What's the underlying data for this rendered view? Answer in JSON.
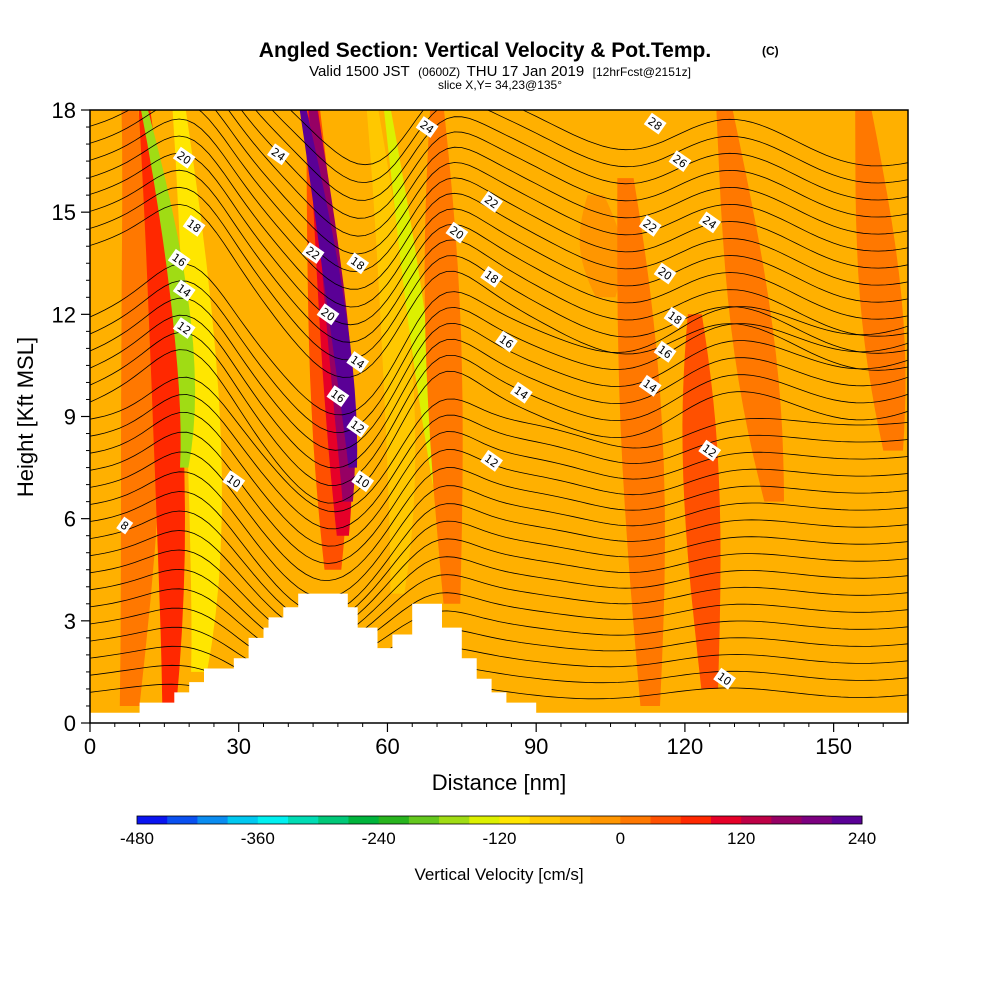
{
  "header": {
    "title": "Angled Section: Vertical Velocity & Pot.Temp.",
    "title_mark": "(C)",
    "subtitle_valid": "Valid 1500 JST",
    "subtitle_z": "(0600Z)",
    "subtitle_date": "THU 17 Jan 2019",
    "subtitle_fcst": "[12hrFcst@2151z]",
    "slice": "slice X,Y= 34,23@135°"
  },
  "chart_data": {
    "type": "heatmap",
    "title": "Angled Section: Vertical Velocity & Pot.Temp.",
    "xlabel": "Distance [nm]",
    "ylabel": "Height [Kft MSL]",
    "xlim": [
      0,
      165
    ],
    "ylim": [
      0,
      18
    ],
    "x_ticks": [
      0,
      30,
      60,
      90,
      120,
      150
    ],
    "y_ticks": [
      0,
      3,
      6,
      9,
      12,
      15,
      18
    ],
    "x_tick_labels": [
      "0",
      "30",
      "60",
      "90",
      "120",
      "150"
    ],
    "y_tick_labels": [
      "0",
      "3",
      "6",
      "9",
      "12",
      "15",
      "18"
    ],
    "background_color": "#ffb000",
    "colorbar": {
      "title": "Vertical Velocity [cm/s]",
      "range": [
        -480,
        240
      ],
      "ticks": [
        -480,
        -360,
        -240,
        -120,
        0,
        120,
        240
      ],
      "tick_labels": [
        "-480",
        "-360",
        "-240",
        "-120",
        "0",
        "120",
        "240"
      ],
      "colors": [
        "#0a14f0",
        "#0a50f0",
        "#0a8cf0",
        "#00c8f0",
        "#00f0f0",
        "#00dcb4",
        "#00c878",
        "#00b43c",
        "#28b41e",
        "#64c81e",
        "#a0dc14",
        "#dcf000",
        "#ffe600",
        "#ffc800",
        "#ffb000",
        "#ff9600",
        "#ff7800",
        "#ff5000",
        "#ff2800",
        "#e60028",
        "#be0046",
        "#960064",
        "#7c0080",
        "#5a0096"
      ]
    },
    "velocity_bands": [
      {
        "x": [
          8,
          13,
          8
        ],
        "y": [
          0.5,
          12.0,
          18
        ],
        "level_cm_s": 30,
        "color": "#ff7800"
      },
      {
        "x": [
          16,
          18,
          11
        ],
        "y": [
          0.5,
          8.0,
          18
        ],
        "level_cm_s": 90,
        "color": "#ff2800"
      },
      {
        "x": [
          22,
          26,
          18
        ],
        "y": [
          1.5,
          7.0,
          18
        ],
        "level_cm_s": -60,
        "color": "#ffe600"
      },
      {
        "x": [
          19,
          22,
          11
        ],
        "y": [
          7.5,
          11.0,
          18
        ],
        "level_cm_s": -150,
        "color": "#a0dc14"
      },
      {
        "x": [
          49,
          49,
          45
        ],
        "y": [
          4.5,
          9.0,
          18
        ],
        "level_cm_s": 60,
        "color": "#ff5000"
      },
      {
        "x": [
          51,
          51,
          45
        ],
        "y": [
          5.5,
          9.0,
          18
        ],
        "level_cm_s": 120,
        "color": "#e60028"
      },
      {
        "x": [
          52,
          52,
          45
        ],
        "y": [
          6.5,
          10.0,
          18
        ],
        "level_cm_s": 180,
        "color": "#960064"
      },
      {
        "x": [
          53,
          52,
          43
        ],
        "y": [
          7.5,
          11.0,
          18
        ],
        "level_cm_s": 240,
        "color": "#5a0096"
      },
      {
        "x": [
          62,
          65,
          57
        ],
        "y": [
          3.8,
          9.0,
          18
        ],
        "level_cm_s": -90,
        "color": "#ffc800"
      },
      {
        "x": [
          70,
          67,
          60
        ],
        "y": [
          7.0,
          11.0,
          18
        ],
        "level_cm_s": -150,
        "color": "#dcf000"
      },
      {
        "x": [
          73,
          71,
          70
        ],
        "y": [
          3.5,
          12.0,
          18
        ],
        "level_cm_s": 60,
        "color": "#ff7800"
      },
      {
        "x": [
          104,
          103,
          102
        ],
        "y": [
          12.5,
          14.0,
          15.5
        ],
        "level_cm_s": 30,
        "color": "#ff9600"
      },
      {
        "x": [
          113,
          112,
          108
        ],
        "y": [
          0.5,
          9.0,
          16.0
        ],
        "level_cm_s": 30,
        "color": "#ff7800"
      },
      {
        "x": [
          125,
          123,
          122
        ],
        "y": [
          1.0,
          8.0,
          12.0
        ],
        "level_cm_s": 60,
        "color": "#ff5000"
      },
      {
        "x": [
          138,
          134,
          128
        ],
        "y": [
          6.5,
          11.0,
          18
        ],
        "level_cm_s": 30,
        "color": "#ff7800"
      },
      {
        "x": [
          162,
          160,
          156
        ],
        "y": [
          8.0,
          12.0,
          18
        ],
        "level_cm_s": 30,
        "color": "#ff7800"
      }
    ],
    "theta_labels": [
      {
        "text": "8",
        "x": 7,
        "y": 5.8
      },
      {
        "text": "10",
        "x": 29,
        "y": 7.1
      },
      {
        "text": "12",
        "x": 19,
        "y": 11.6
      },
      {
        "text": "14",
        "x": 19,
        "y": 12.7
      },
      {
        "text": "16",
        "x": 18,
        "y": 13.6
      },
      {
        "text": "18",
        "x": 21,
        "y": 14.6
      },
      {
        "text": "20",
        "x": 19,
        "y": 16.6
      },
      {
        "text": "24",
        "x": 38,
        "y": 16.7
      },
      {
        "text": "22",
        "x": 45,
        "y": 13.8
      },
      {
        "text": "20",
        "x": 48,
        "y": 12.0
      },
      {
        "text": "18",
        "x": 54,
        "y": 13.5
      },
      {
        "text": "14",
        "x": 54,
        "y": 10.6
      },
      {
        "text": "16",
        "x": 50,
        "y": 9.6
      },
      {
        "text": "12",
        "x": 54,
        "y": 8.7
      },
      {
        "text": "10",
        "x": 55,
        "y": 7.1
      },
      {
        "text": "24",
        "x": 68,
        "y": 17.5
      },
      {
        "text": "22",
        "x": 81,
        "y": 15.3
      },
      {
        "text": "20",
        "x": 74,
        "y": 14.4
      },
      {
        "text": "18",
        "x": 81,
        "y": 13.1
      },
      {
        "text": "16",
        "x": 84,
        "y": 11.2
      },
      {
        "text": "14",
        "x": 87,
        "y": 9.7
      },
      {
        "text": "12",
        "x": 81,
        "y": 7.7
      },
      {
        "text": "28",
        "x": 114,
        "y": 17.6
      },
      {
        "text": "26",
        "x": 119,
        "y": 16.5
      },
      {
        "text": "22",
        "x": 113,
        "y": 14.6
      },
      {
        "text": "24",
        "x": 125,
        "y": 14.7
      },
      {
        "text": "20",
        "x": 116,
        "y": 13.2
      },
      {
        "text": "18",
        "x": 118,
        "y": 11.9
      },
      {
        "text": "16",
        "x": 116,
        "y": 10.9
      },
      {
        "text": "14",
        "x": 113,
        "y": 9.9
      },
      {
        "text": "12",
        "x": 125,
        "y": 8.0
      },
      {
        "text": "10",
        "x": 128,
        "y": 1.3
      }
    ],
    "terrain": [
      [
        0,
        0.3
      ],
      [
        10,
        0.3
      ],
      [
        10,
        0.6
      ],
      [
        17,
        0.6
      ],
      [
        17,
        0.9
      ],
      [
        20,
        0.9
      ],
      [
        20,
        1.2
      ],
      [
        23,
        1.2
      ],
      [
        23,
        1.6
      ],
      [
        29,
        1.6
      ],
      [
        29,
        1.9
      ],
      [
        32,
        1.9
      ],
      [
        32,
        2.5
      ],
      [
        35,
        2.5
      ],
      [
        35,
        2.8
      ],
      [
        36,
        2.8
      ],
      [
        36,
        3.1
      ],
      [
        39,
        3.1
      ],
      [
        39,
        3.4
      ],
      [
        42,
        3.4
      ],
      [
        42,
        3.8
      ],
      [
        52,
        3.8
      ],
      [
        52,
        3.4
      ],
      [
        54,
        3.4
      ],
      [
        54,
        2.8
      ],
      [
        58,
        2.8
      ],
      [
        58,
        2.2
      ],
      [
        61,
        2.2
      ],
      [
        61,
        2.6
      ],
      [
        65,
        2.6
      ],
      [
        65,
        3.5
      ],
      [
        71,
        3.5
      ],
      [
        71,
        2.8
      ],
      [
        75,
        2.8
      ],
      [
        75,
        1.9
      ],
      [
        78,
        1.9
      ],
      [
        78,
        1.3
      ],
      [
        81,
        1.3
      ],
      [
        81,
        0.9
      ],
      [
        84,
        0.9
      ],
      [
        84,
        0.6
      ],
      [
        90,
        0.6
      ],
      [
        90,
        0.3
      ],
      [
        165,
        0.3
      ]
    ]
  }
}
